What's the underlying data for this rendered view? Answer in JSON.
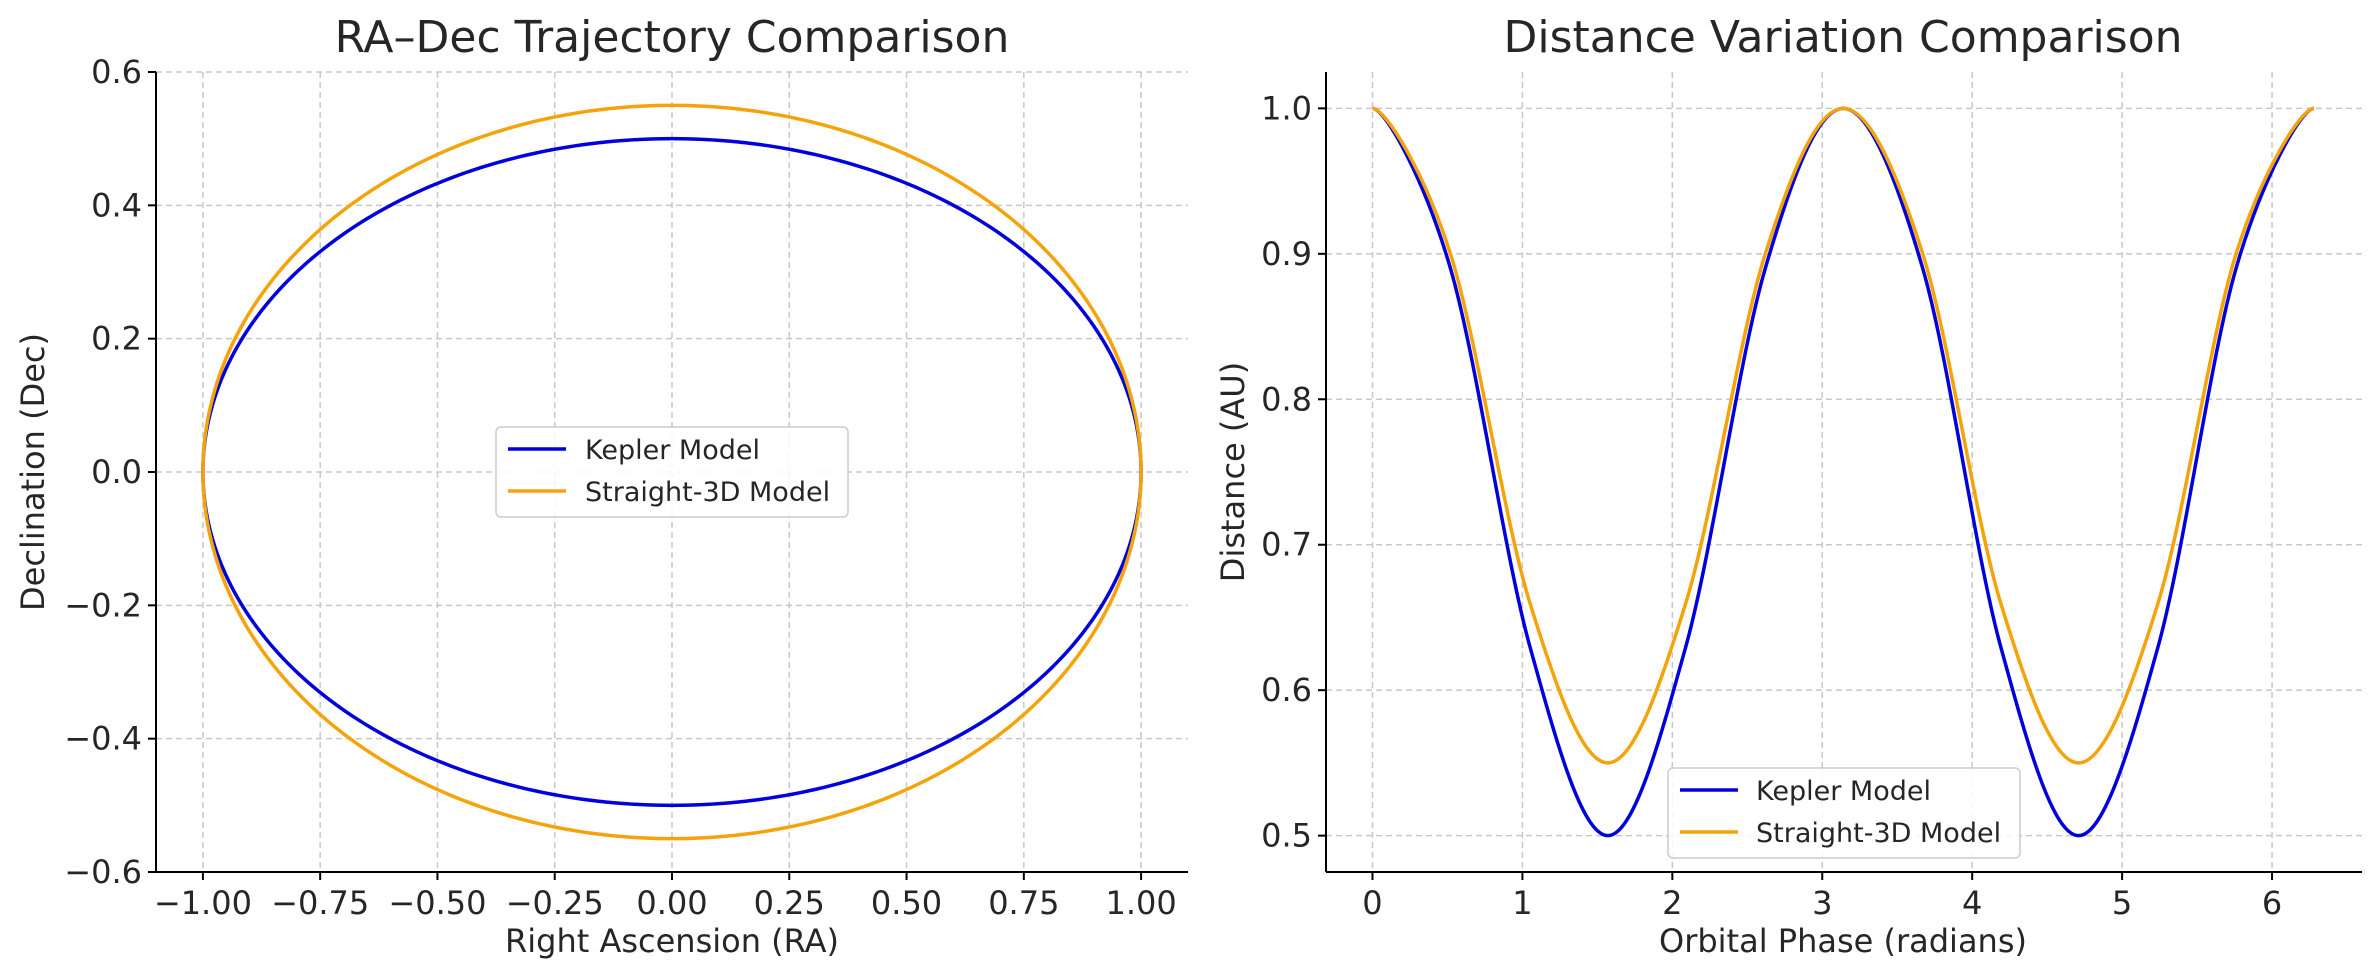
{
  "chart_data": [
    {
      "type": "line",
      "title": "RA–Dec Trajectory Comparison",
      "xlabel": "Right Ascension (RA)",
      "ylabel": "Declination (Dec)",
      "xlim": [
        -1.1,
        1.1
      ],
      "ylim": [
        -0.6,
        0.6
      ],
      "xticks": [
        -1.0,
        -0.75,
        -0.5,
        -0.25,
        0.0,
        0.25,
        0.5,
        0.75,
        1.0
      ],
      "xtick_labels": [
        "−1.00",
        "−0.75",
        "−0.50",
        "−0.25",
        "0.00",
        "0.25",
        "0.50",
        "0.75",
        "1.00"
      ],
      "yticks": [
        -0.6,
        -0.4,
        -0.2,
        0.0,
        0.2,
        0.4,
        0.6
      ],
      "ytick_labels": [
        "−0.6",
        "−0.4",
        "−0.2",
        "0.0",
        "0.2",
        "0.4",
        "0.6"
      ],
      "grid": true,
      "legend": "center",
      "series": [
        {
          "name": "Kepler Model",
          "color": "#0000dd",
          "shape": "ellipse",
          "ra_semi_axis": 1.0,
          "dec_semi_axis": 0.5
        },
        {
          "name": "Straight-3D Model",
          "color": "#f5a30a",
          "shape": "ellipse",
          "ra_semi_axis": 1.0,
          "dec_semi_axis": 0.55
        }
      ]
    },
    {
      "type": "line",
      "title": "Distance Variation Comparison",
      "xlabel": "Orbital Phase (radians)",
      "ylabel": "Distance (AU)",
      "xlim": [
        -0.31,
        6.6
      ],
      "ylim": [
        0.475,
        1.025
      ],
      "xticks": [
        0,
        1,
        2,
        3,
        4,
        5,
        6
      ],
      "xtick_labels": [
        "0",
        "1",
        "2",
        "3",
        "4",
        "5",
        "6"
      ],
      "yticks": [
        0.5,
        0.6,
        0.7,
        0.8,
        0.9,
        1.0
      ],
      "ytick_labels": [
        "0.5",
        "0.6",
        "0.7",
        "0.8",
        "0.9",
        "1.0"
      ],
      "grid": true,
      "legend": "lower center",
      "x": [
        0.0,
        0.52,
        1.05,
        1.57,
        2.09,
        2.62,
        3.14,
        3.67,
        4.19,
        4.71,
        5.24,
        5.76,
        6.28
      ],
      "series": [
        {
          "name": "Kepler Model",
          "color": "#0000dd",
          "values": [
            1.0,
            0.89,
            0.63,
            0.5,
            0.63,
            0.89,
            1.0,
            0.89,
            0.63,
            0.5,
            0.63,
            0.89,
            1.0
          ]
        },
        {
          "name": "Straight-3D Model",
          "color": "#f5a30a",
          "values": [
            1.0,
            0.9,
            0.66,
            0.55,
            0.66,
            0.9,
            1.0,
            0.9,
            0.66,
            0.55,
            0.66,
            0.9,
            1.0
          ]
        }
      ]
    }
  ]
}
